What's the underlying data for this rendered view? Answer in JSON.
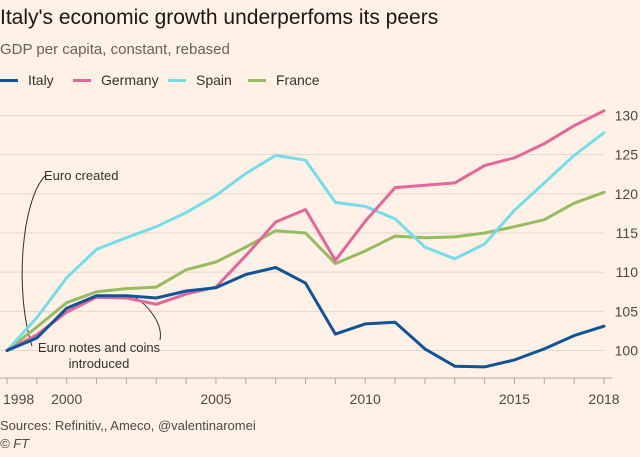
{
  "chart_data": {
    "type": "line",
    "title": "Italy's economic growth underperfoms its peers",
    "subtitle": "GDP per capita, constant, rebased",
    "x": [
      1998,
      1999,
      2000,
      2001,
      2002,
      2003,
      2004,
      2005,
      2006,
      2007,
      2008,
      2009,
      2010,
      2011,
      2012,
      2013,
      2014,
      2015,
      2016,
      2017,
      2018
    ],
    "x_tick_labels": [
      {
        "value": 1998,
        "label": "1998"
      },
      {
        "value": 2000,
        "label": "2000"
      },
      {
        "value": 2005,
        "label": "2005"
      },
      {
        "value": 2010,
        "label": "2010"
      },
      {
        "value": 2015,
        "label": "2015"
      },
      {
        "value": 2018,
        "label": "2018"
      }
    ],
    "y_ticks": [
      100,
      105,
      110,
      115,
      120,
      125,
      130
    ],
    "xlim": [
      1998,
      2018
    ],
    "ylim": [
      97,
      133
    ],
    "grid": true,
    "series": [
      {
        "name": "Italy",
        "color": "#0f5499",
        "values": [
          100,
          101.6,
          105.4,
          107.0,
          107.0,
          106.7,
          107.6,
          108.0,
          109.7,
          110.6,
          108.6,
          102.1,
          103.4,
          103.6,
          100.2,
          98.0,
          97.9,
          98.8,
          100.2,
          101.9,
          103.1
        ]
      },
      {
        "name": "Germany",
        "color": "#e3679a",
        "values": [
          100,
          102.0,
          104.9,
          106.8,
          106.7,
          105.9,
          107.2,
          108.1,
          112.1,
          116.4,
          118.0,
          111.5,
          116.5,
          120.8,
          121.1,
          121.4,
          123.6,
          124.6,
          126.4,
          128.7,
          130.6
        ]
      },
      {
        "name": "Spain",
        "color": "#75ddea",
        "values": [
          100,
          104.2,
          109.3,
          112.9,
          114.4,
          115.8,
          117.6,
          119.8,
          122.6,
          124.9,
          124.3,
          118.9,
          118.4,
          116.8,
          113.2,
          111.7,
          113.6,
          117.9,
          121.4,
          124.9,
          127.8
        ]
      },
      {
        "name": "France",
        "color": "#96bc5f",
        "values": [
          100,
          103.0,
          106.1,
          107.5,
          107.9,
          108.1,
          110.3,
          111.3,
          113.2,
          115.3,
          115.0,
          111.1,
          112.7,
          114.6,
          114.4,
          114.5,
          115.0,
          115.8,
          116.7,
          118.8,
          120.2
        ]
      }
    ],
    "annotations": [
      {
        "lines": [
          "Euro created"
        ],
        "x": 1999
      },
      {
        "lines": [
          "Euro notes and coins",
          "introduced"
        ],
        "x": 2002
      }
    ],
    "legend_position": "top-left"
  },
  "footer": {
    "source": "Sources: Refinitiv,, Ameco, @valentinaromei",
    "credit": "© FT"
  }
}
